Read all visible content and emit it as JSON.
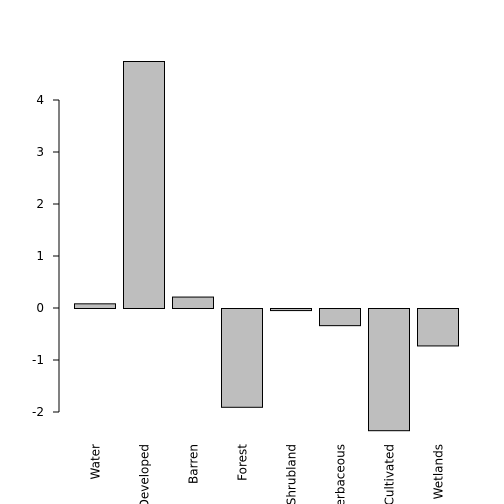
{
  "chart_data": {
    "type": "bar",
    "title": "",
    "xlabel": "",
    "ylabel": "",
    "categories": [
      "Water",
      "Developed",
      "Barren",
      "Forest",
      "Shrubland",
      "Herbaceous",
      "Cultivated",
      "Wetlands"
    ],
    "values": [
      0.09,
      4.75,
      0.22,
      -1.9,
      -0.04,
      -0.33,
      -2.35,
      -0.72
    ],
    "ylim": [
      -2.35,
      4.75
    ],
    "yticks": [
      -2,
      -1,
      0,
      1,
      2,
      3,
      4
    ],
    "ytick_labels": [
      "-2",
      "-1",
      "0",
      "1",
      "2",
      "3",
      "4"
    ],
    "grid": false,
    "bar_color": "#bebebe",
    "edge_color": "#000000"
  }
}
